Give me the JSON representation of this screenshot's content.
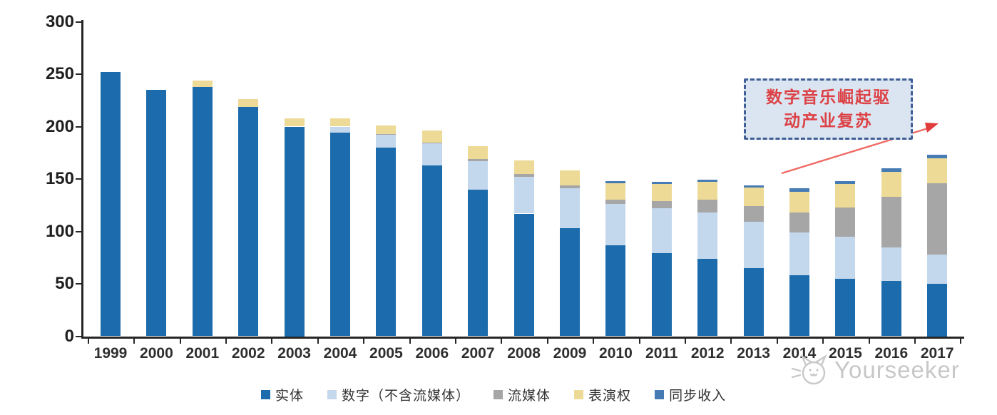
{
  "chart_data": {
    "type": "bar",
    "stacked": true,
    "categories": [
      "1999",
      "2000",
      "2001",
      "2002",
      "2003",
      "2004",
      "2005",
      "2006",
      "2007",
      "2008",
      "2009",
      "2010",
      "2011",
      "2012",
      "2013",
      "2014",
      "2015",
      "2016",
      "2017"
    ],
    "series": [
      {
        "name": "实体",
        "color": "#1C6BAC",
        "values": [
          252,
          235,
          238,
          219,
          200,
          194,
          180,
          163,
          140,
          117,
          103,
          87,
          79,
          74,
          65,
          58,
          55,
          53,
          50
        ]
      },
      {
        "name": "数字（不含流媒体）",
        "color": "#C3D8ED",
        "values": [
          0,
          0,
          0,
          0,
          0,
          6,
          12,
          21,
          27,
          35,
          38,
          39,
          43,
          44,
          44,
          41,
          40,
          32,
          28
        ]
      },
      {
        "name": "流媒体",
        "color": "#A6A6A6",
        "values": [
          0,
          0,
          0,
          0,
          0,
          0,
          1,
          1,
          2,
          3,
          3,
          4,
          7,
          12,
          15,
          19,
          28,
          48,
          68
        ]
      },
      {
        "name": "表演权",
        "color": "#EDDA96",
        "values": [
          0,
          0,
          6,
          7,
          8,
          8,
          8,
          11,
          12,
          13,
          14,
          16,
          16,
          17,
          18,
          20,
          22,
          24,
          24
        ]
      },
      {
        "name": "同步收入",
        "color": "#477BB3",
        "values": [
          0,
          0,
          0,
          0,
          0,
          0,
          0,
          0,
          0,
          0,
          0,
          2,
          2,
          2,
          2,
          3,
          3,
          3,
          3
        ]
      }
    ],
    "ylim": [
      0,
      300
    ],
    "yticks": [
      0,
      50,
      100,
      150,
      200,
      250,
      300
    ],
    "xlabel": "",
    "ylabel": "",
    "title": "",
    "grid": false,
    "legend_position": "bottom"
  },
  "annotation": {
    "line1": "数字音乐崛起驱",
    "line2": "动产业复苏",
    "arrow_color": "#ef6a64",
    "box_fill": "#dbe5f1",
    "box_border": "#3f5e96",
    "text_color": "#dc4145"
  },
  "watermark": {
    "text": "Yourseeker"
  }
}
